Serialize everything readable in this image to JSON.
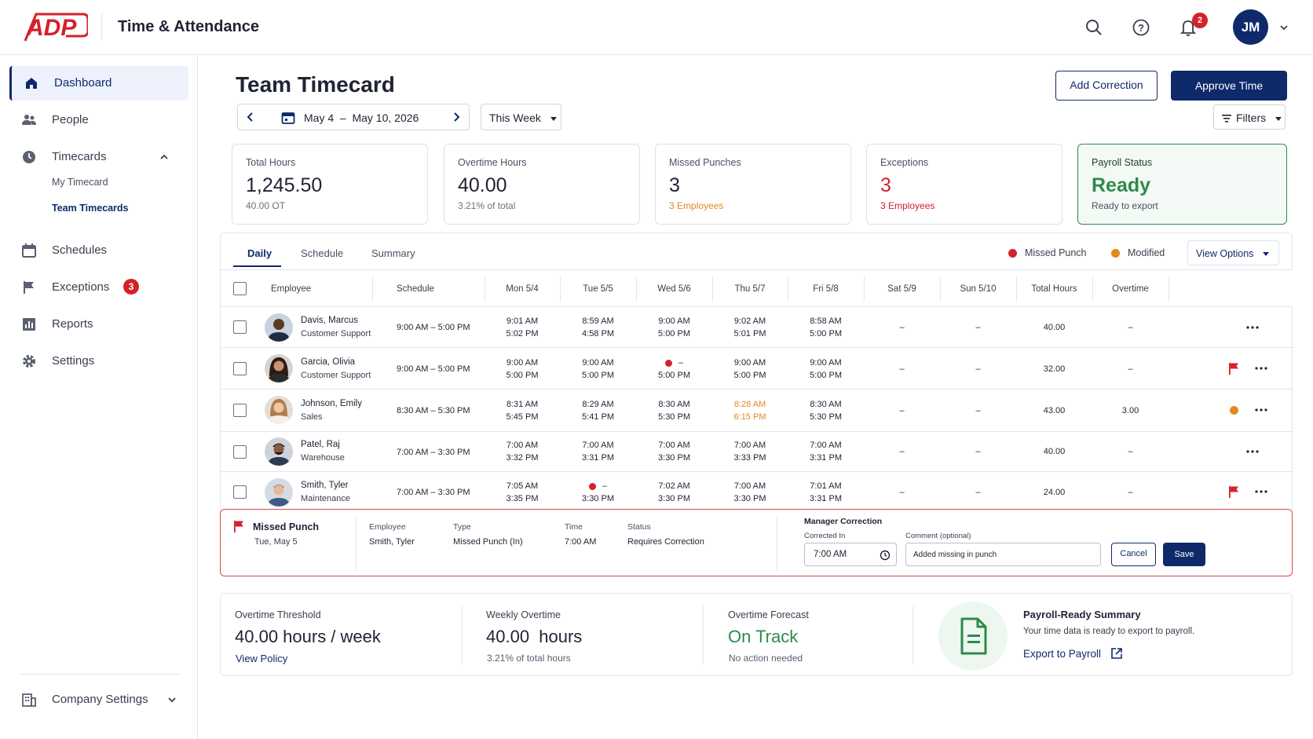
{
  "header": {
    "app_title": "Time & Attendance",
    "notifications_count": "2",
    "user_initials": "JM"
  },
  "sidebar": {
    "items": [
      {
        "label": "Dashboard",
        "icon": "home-icon"
      },
      {
        "label": "People",
        "icon": "people-icon"
      },
      {
        "label": "Timecards",
        "icon": "clock-icon"
      },
      {
        "label": "Schedules",
        "icon": "calendar-icon"
      },
      {
        "label": "Exceptions",
        "icon": "flag-icon",
        "badge": "3"
      },
      {
        "label": "Reports",
        "icon": "chart-icon"
      },
      {
        "label": "Settings",
        "icon": "gear-icon"
      }
    ],
    "timecards_sub": [
      "My Timecard",
      "Team Timecards"
    ],
    "company_settings": "Company Settings"
  },
  "page": {
    "title": "Team Timecard",
    "add_correction": "Add Correction",
    "approve_time": "Approve Time",
    "date_range": "May 4  –  May 10, 2026",
    "period": "This Week",
    "filters": "Filters"
  },
  "cards": [
    {
      "title": "Total Hours",
      "value": "1,245.50",
      "sub": "40.00 OT"
    },
    {
      "title": "Overtime Hours",
      "value": "40.00",
      "sub": "3.21% of total"
    },
    {
      "title": "Missed Punches",
      "value": "3",
      "sub": "3 Employees"
    },
    {
      "title": "Exceptions",
      "value": "3",
      "sub": "3 Employees"
    },
    {
      "title": "Payroll Status",
      "value": "Ready",
      "sub": "Ready to export"
    }
  ],
  "tabs": [
    "Daily",
    "Schedule",
    "Summary"
  ],
  "legend": {
    "missed": "Missed Punch",
    "modified": "Modified",
    "view_options": "View Options"
  },
  "columns": [
    "Employee",
    "Schedule",
    "Mon 5/4",
    "Tue 5/5",
    "Wed 5/6",
    "Thu 5/7",
    "Fri 5/8",
    "Sat 5/9",
    "Sun 5/10",
    "Total Hours",
    "Overtime"
  ],
  "colors": {
    "brand": "#0f2a6b",
    "alert": "#d3222a",
    "modified": "#e08a1e",
    "ok": "#2e8a4a"
  },
  "rows": [
    {
      "name": "Davis, Marcus",
      "dept": "Customer Support",
      "schedule": "9:00 AM – 5:00 PM",
      "days": [
        [
          "9:01 AM",
          "5:02 PM"
        ],
        [
          "8:59 AM",
          "4:58 PM"
        ],
        [
          "9:00 AM",
          "5:00 PM"
        ],
        [
          "9:02 AM",
          "5:01 PM"
        ],
        [
          "8:58 AM",
          "5:00 PM"
        ]
      ],
      "sat": "–",
      "sun": "–",
      "total": "40.00",
      "ot": "–"
    },
    {
      "name": "Garcia, Olivia",
      "dept": "Customer Support",
      "schedule": "9:00 AM – 5:00 PM",
      "days": [
        [
          "9:00 AM",
          "5:00 PM"
        ],
        [
          "9:00 AM",
          "5:00 PM"
        ],
        [
          "–",
          "5:00 PM"
        ],
        [
          "9:00 AM",
          "5:00 PM"
        ],
        [
          "9:00 AM",
          "5:00 PM"
        ]
      ],
      "sat": "–",
      "sun": "–",
      "total": "32.00",
      "ot": "–"
    },
    {
      "name": "Johnson, Emily",
      "dept": "Sales",
      "schedule": "8:30 AM – 5:30 PM",
      "days": [
        [
          "8:31 AM",
          "5:45 PM"
        ],
        [
          "8:29 AM",
          "5:41 PM"
        ],
        [
          "8:30 AM",
          "5:30 PM"
        ],
        [
          "8:28 AM",
          "6:15 PM"
        ],
        [
          "8:30 AM",
          "5:30 PM"
        ]
      ],
      "sat": "–",
      "sun": "–",
      "total": "43.00",
      "ot": "3.00"
    },
    {
      "name": "Patel, Raj",
      "dept": "Warehouse",
      "schedule": "7:00 AM – 3:30 PM",
      "days": [
        [
          "7:00 AM",
          "3:32 PM"
        ],
        [
          "7:00 AM",
          "3:31 PM"
        ],
        [
          "7:00 AM",
          "3:30 PM"
        ],
        [
          "7:00 AM",
          "3:33 PM"
        ],
        [
          "7:00 AM",
          "3:31 PM"
        ]
      ],
      "sat": "–",
      "sun": "–",
      "total": "40.00",
      "ot": "–"
    },
    {
      "name": "Smith, Tyler",
      "dept": "Maintenance",
      "schedule": "7:00 AM – 3:30 PM",
      "days": [
        [
          "7:05 AM",
          "3:35 PM"
        ],
        [
          "–",
          "3:30 PM"
        ],
        [
          "7:02 AM",
          "3:30 PM"
        ],
        [
          "7:00 AM",
          "3:30 PM"
        ],
        [
          "7:01 AM",
          "3:31 PM"
        ]
      ],
      "sat": "–",
      "sun": "–",
      "total": "24.00",
      "ot": "–"
    }
  ],
  "correction": {
    "title": "Missed Punch",
    "date": "Tue, May 5",
    "employee_label": "Employee",
    "employee": "Smith, Tyler",
    "type_label": "Type",
    "type": "Missed Punch (In)",
    "time_label": "Time",
    "time": "7:00 AM",
    "status_label": "Status",
    "status": "Requires Correction",
    "manager_label": "Manager Correction",
    "corrected_in_label": "Corrected In",
    "corrected_in": "7:00 AM",
    "comment_label": "Comment (optional)",
    "comment": "Added missing in punch",
    "cancel": "Cancel",
    "save": "Save"
  },
  "bottom": {
    "threshold_title": "Overtime Threshold",
    "threshold_value": "40.00 hours / week",
    "view_policy": "View Policy",
    "weekly_title": "Weekly Overtime",
    "weekly_value": "40.00  hours",
    "weekly_sub": "3.21% of total hours",
    "forecast_title": "Overtime Forecast",
    "forecast_value": "On Track",
    "forecast_sub": "No action needed",
    "payroll_title": "Payroll-Ready Summary",
    "payroll_sub": "Your time data is ready to export to payroll.",
    "export": "Export to Payroll"
  }
}
